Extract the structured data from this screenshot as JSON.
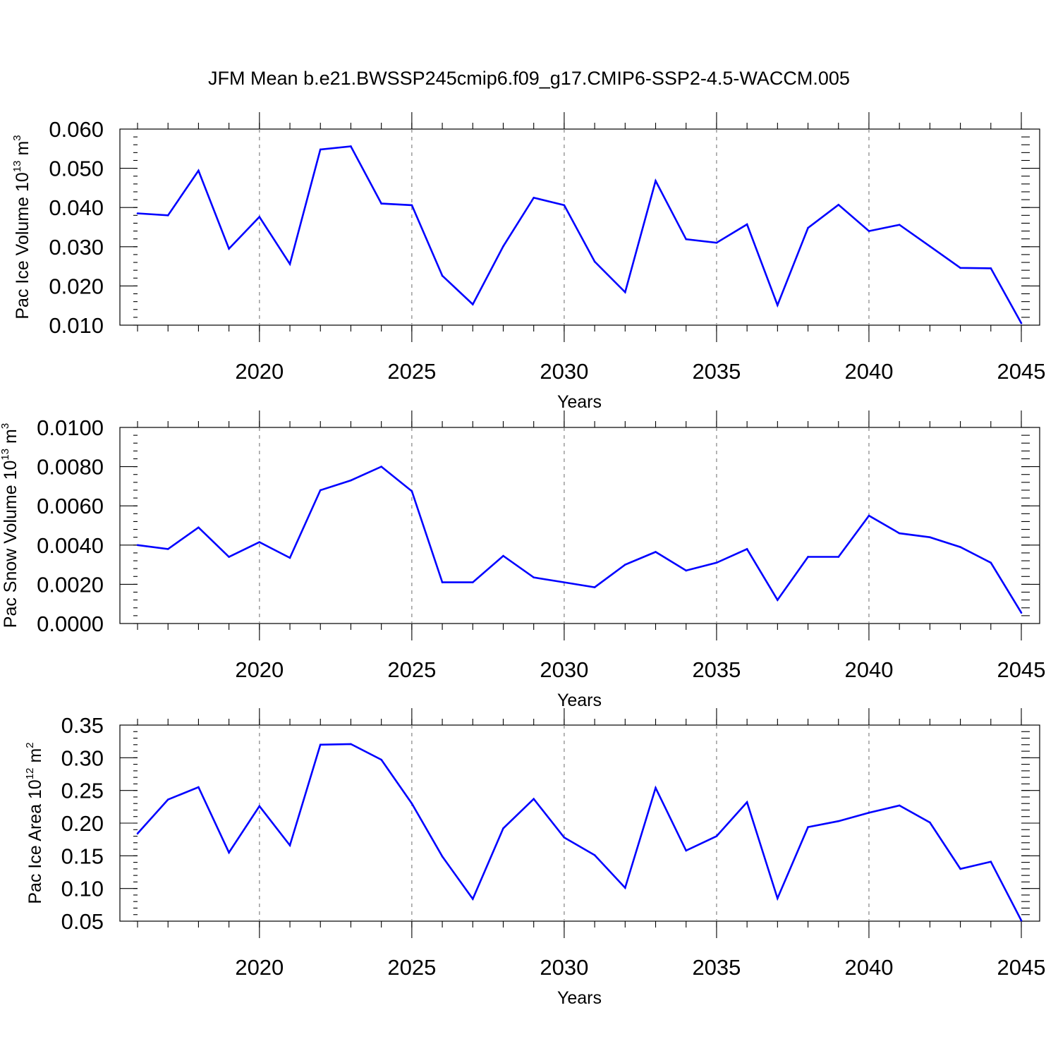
{
  "title": "JFM Mean b.e21.BWSSP245cmip6.f09_g17.CMIP6-SSP2-4.5-WACCM.005",
  "colors": {
    "line": "#0000ff",
    "grid": "#8c8c8c",
    "axis": "#000000"
  },
  "chart_data": [
    {
      "type": "line",
      "ylabel": "Pac Ice Volume",
      "units_base": "10",
      "units_exp": "13",
      "units_unit": "m",
      "units_unit_exp": "3",
      "xlabel": "Years",
      "xlim": [
        2016,
        2045
      ],
      "x_ticks": [
        "2020",
        "2025",
        "2030",
        "2035",
        "2040",
        "2045"
      ],
      "ylim": [
        0.01,
        0.06
      ],
      "y_ticks": [
        "0.010",
        "0.020",
        "0.030",
        "0.040",
        "0.050",
        "0.060"
      ],
      "y_minor_step": 0.002,
      "grid": "vertical-dashed",
      "x": [
        2016,
        2017,
        2018,
        2019,
        2020,
        2021,
        2022,
        2023,
        2024,
        2025,
        2026,
        2027,
        2028,
        2029,
        2030,
        2031,
        2032,
        2033,
        2034,
        2035,
        2036,
        2037,
        2038,
        2039,
        2040,
        2041,
        2042,
        2043,
        2044,
        2045
      ],
      "values": [
        0.0385,
        0.038,
        0.0494,
        0.0295,
        0.0376,
        0.0256,
        0.0548,
        0.0556,
        0.041,
        0.0406,
        0.0226,
        0.0153,
        0.0301,
        0.0425,
        0.0406,
        0.0262,
        0.0184,
        0.0468,
        0.0319,
        0.031,
        0.0357,
        0.0151,
        0.0348,
        0.0407,
        0.034,
        0.0356,
        0.0301,
        0.0246,
        0.0245,
        0.0105
      ]
    },
    {
      "type": "line",
      "ylabel": "Pac Snow Volume",
      "units_base": "10",
      "units_exp": "13",
      "units_unit": "m",
      "units_unit_exp": "3",
      "xlabel": "Years",
      "xlim": [
        2016,
        2045
      ],
      "x_ticks": [
        "2020",
        "2025",
        "2030",
        "2035",
        "2040",
        "2045"
      ],
      "ylim": [
        0.0,
        0.01
      ],
      "y_ticks": [
        "0.0000",
        "0.0020",
        "0.0040",
        "0.0060",
        "0.0080",
        "0.0100"
      ],
      "y_minor_step": 0.0004,
      "grid": "vertical-dashed",
      "x": [
        2016,
        2017,
        2018,
        2019,
        2020,
        2021,
        2022,
        2023,
        2024,
        2025,
        2026,
        2027,
        2028,
        2029,
        2030,
        2031,
        2032,
        2033,
        2034,
        2035,
        2036,
        2037,
        2038,
        2039,
        2040,
        2041,
        2042,
        2043,
        2044,
        2045
      ],
      "values": [
        0.004,
        0.0038,
        0.0049,
        0.0034,
        0.00415,
        0.00335,
        0.0068,
        0.0073,
        0.008,
        0.00675,
        0.0021,
        0.0021,
        0.00345,
        0.00235,
        0.0021,
        0.00185,
        0.003,
        0.00365,
        0.0027,
        0.0031,
        0.0038,
        0.0012,
        0.0034,
        0.0034,
        0.0055,
        0.0046,
        0.0044,
        0.0039,
        0.0031,
        0.00055
      ]
    },
    {
      "type": "line",
      "ylabel": "Pac Ice Area",
      "units_base": "10",
      "units_exp": "12",
      "units_unit": "m",
      "units_unit_exp": "2",
      "xlabel": "Years",
      "xlim": [
        2016,
        2045
      ],
      "x_ticks": [
        "2020",
        "2025",
        "2030",
        "2035",
        "2040",
        "2045"
      ],
      "ylim": [
        0.05,
        0.35
      ],
      "y_ticks": [
        "0.05",
        "0.10",
        "0.15",
        "0.20",
        "0.25",
        "0.30",
        "0.35"
      ],
      "y_minor_step": 0.01,
      "grid": "vertical-dashed",
      "x": [
        2016,
        2017,
        2018,
        2019,
        2020,
        2021,
        2022,
        2023,
        2024,
        2025,
        2026,
        2027,
        2028,
        2029,
        2030,
        2031,
        2032,
        2033,
        2034,
        2035,
        2036,
        2037,
        2038,
        2039,
        2040,
        2041,
        2042,
        2043,
        2044,
        2045
      ],
      "values": [
        0.184,
        0.236,
        0.255,
        0.155,
        0.226,
        0.166,
        0.32,
        0.321,
        0.297,
        0.23,
        0.149,
        0.084,
        0.192,
        0.237,
        0.178,
        0.151,
        0.101,
        0.254,
        0.158,
        0.18,
        0.232,
        0.085,
        0.194,
        0.203,
        0.216,
        0.227,
        0.201,
        0.13,
        0.141,
        0.051
      ]
    }
  ]
}
